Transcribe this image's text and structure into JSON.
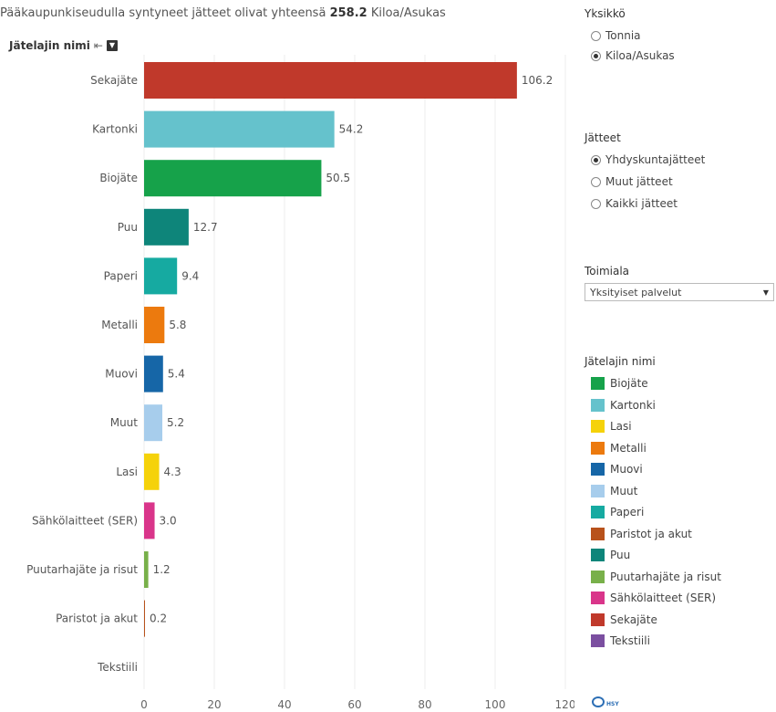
{
  "header": {
    "subtitle_prefix": "Pääkaupunkiseudulla syntyneet jätteet olivat yhteensä",
    "total": "258.2",
    "unit": "Kiloa/Asukas",
    "field_label": "Jätelajin nimi",
    "sort_icon": "sort-descending-icon",
    "menu_icon": "dropdown-menu-icon"
  },
  "chart_data": {
    "type": "bar",
    "orientation": "horizontal",
    "categories": [
      "Sekajäte",
      "Kartonki",
      "Biojäte",
      "Puu",
      "Paperi",
      "Metalli",
      "Muovi",
      "Muut",
      "Lasi",
      "Sähkölaitteet (SER)",
      "Puutarhajäte ja risut",
      "Paristot ja akut",
      "Tekstiili"
    ],
    "values": [
      106.2,
      54.2,
      50.5,
      12.7,
      9.4,
      5.8,
      5.4,
      5.2,
      4.3,
      3.0,
      1.2,
      0.2,
      null
    ],
    "value_labels": [
      "106.2",
      "54.2",
      "50.5",
      "12.7",
      "9.4",
      "5.8",
      "5.4",
      "5.2",
      "4.3",
      "3.0",
      "1.2",
      "0.2",
      ""
    ],
    "colors": [
      "#c0392b",
      "#65c2cc",
      "#16a24a",
      "#0e857a",
      "#16aaa1",
      "#ec7a0e",
      "#1666a7",
      "#a7cdec",
      "#f5d20a",
      "#d9358a",
      "#78b04a",
      "#b8521b",
      "#7b4fa0"
    ],
    "xlim": [
      0,
      120
    ],
    "xticks": [
      "0",
      "20",
      "40",
      "60",
      "80",
      "100",
      "120"
    ],
    "grid": true,
    "title": "",
    "xlabel": "",
    "ylabel": ""
  },
  "panel": {
    "unit_filter": {
      "title": "Yksikkö",
      "options": [
        {
          "label": "Tonnia",
          "selected": false
        },
        {
          "label": "Kiloa/Asukas",
          "selected": true
        }
      ]
    },
    "waste_filter": {
      "title": "Jätteet",
      "options": [
        {
          "label": "Yhdyskuntajätteet",
          "selected": true
        },
        {
          "label": "Muut jätteet",
          "selected": false
        },
        {
          "label": "Kaikki jätteet",
          "selected": false
        }
      ]
    },
    "industry_filter": {
      "title": "Toimiala",
      "value": "Yksityiset palvelut"
    },
    "legend": {
      "title": "Jätelajin nimi",
      "items": [
        {
          "label": "Biojäte",
          "color": "#16a24a"
        },
        {
          "label": "Kartonki",
          "color": "#65c2cc"
        },
        {
          "label": "Lasi",
          "color": "#f5d20a"
        },
        {
          "label": "Metalli",
          "color": "#ec7a0e"
        },
        {
          "label": "Muovi",
          "color": "#1666a7"
        },
        {
          "label": "Muut",
          "color": "#a7cdec"
        },
        {
          "label": "Paperi",
          "color": "#16aaa1"
        },
        {
          "label": "Paristot ja akut",
          "color": "#b8521b"
        },
        {
          "label": "Puu",
          "color": "#0e857a"
        },
        {
          "label": "Puutarhajäte ja risut",
          "color": "#78b04a"
        },
        {
          "label": "Sähkölaitteet (SER)",
          "color": "#d9358a"
        },
        {
          "label": "Sekajäte",
          "color": "#c0392b"
        },
        {
          "label": "Tekstiili",
          "color": "#7b4fa0"
        }
      ]
    },
    "logo_text": "HSY",
    "logo_icon": "hsy-logo-icon"
  }
}
